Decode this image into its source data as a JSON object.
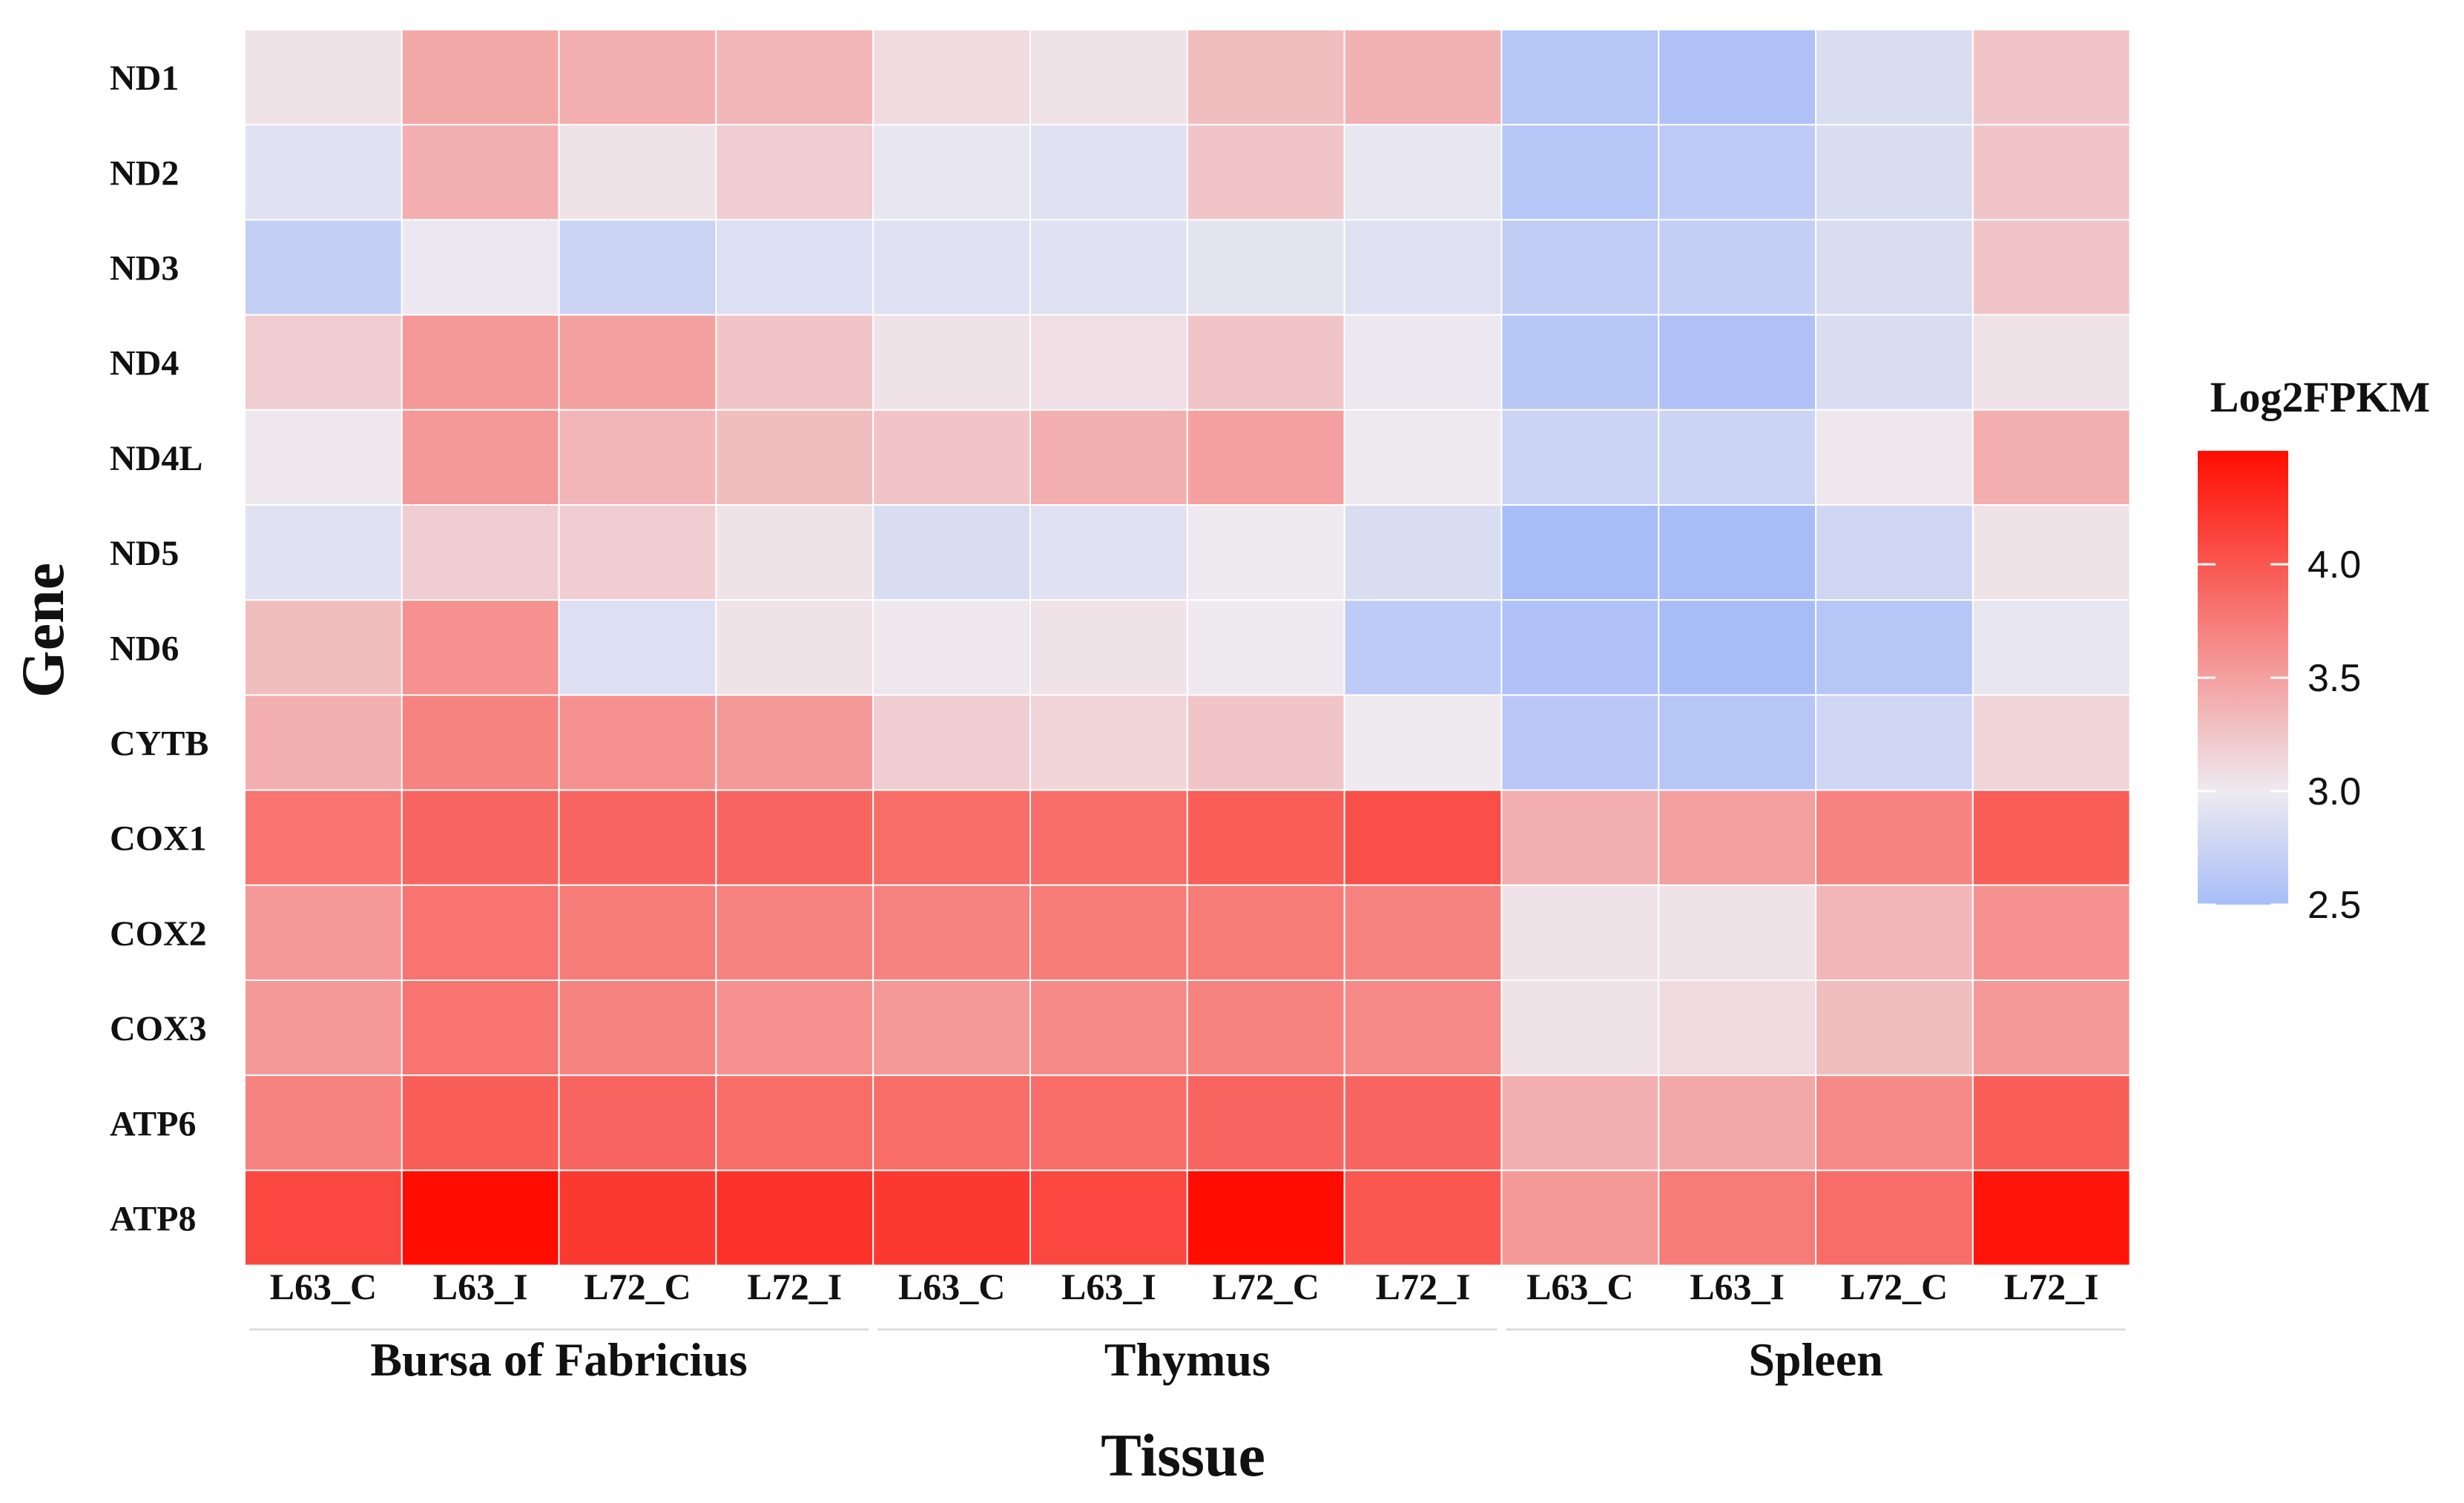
{
  "chart_data": {
    "type": "heatmap",
    "xlabel": "Tissue",
    "ylabel": "Gene",
    "legend_title": "Log2FPKM",
    "legend_ticks": [
      2.5,
      3.0,
      3.5,
      4.0
    ],
    "legend_tick_labels": [
      "2.5",
      "3.0",
      "3.5",
      "4.0"
    ],
    "value_range": [
      2.5,
      4.5
    ],
    "colors": {
      "low": "#a8bdf8",
      "mid": "#eeeaf0",
      "high": "#ff0d00"
    },
    "groups": [
      {
        "name": "Bursa of Fabricius",
        "columns": [
          "L63_C",
          "L63_I",
          "L72_C",
          "L72_I"
        ]
      },
      {
        "name": "Thymus",
        "columns": [
          "L63_C",
          "L63_I",
          "L72_C",
          "L72_I"
        ]
      },
      {
        "name": "Spleen",
        "columns": [
          "L63_C",
          "L63_I",
          "L72_C",
          "L72_I"
        ]
      }
    ],
    "rows": [
      "ND1",
      "ND2",
      "ND3",
      "ND4",
      "ND4L",
      "ND5",
      "ND6",
      "CYTB",
      "COX1",
      "COX2",
      "COX3",
      "ATP6",
      "ATP8"
    ],
    "values": [
      [
        3.05,
        3.45,
        3.4,
        3.35,
        3.1,
        3.05,
        3.3,
        3.38,
        2.6,
        2.55,
        2.85,
        3.25
      ],
      [
        2.9,
        3.4,
        3.05,
        3.2,
        2.95,
        2.9,
        3.25,
        2.95,
        2.6,
        2.65,
        2.85,
        3.25
      ],
      [
        2.7,
        2.98,
        2.75,
        2.88,
        2.9,
        2.9,
        2.93,
        2.9,
        2.68,
        2.7,
        2.85,
        3.25
      ],
      [
        3.2,
        3.55,
        3.5,
        3.25,
        3.05,
        3.08,
        3.25,
        2.98,
        2.6,
        2.55,
        2.85,
        3.05
      ],
      [
        3.02,
        3.55,
        3.35,
        3.3,
        3.25,
        3.4,
        3.5,
        3.0,
        2.75,
        2.75,
        3.02,
        3.4
      ],
      [
        2.9,
        3.2,
        3.2,
        3.05,
        2.85,
        2.9,
        3.0,
        2.85,
        2.5,
        2.5,
        2.78,
        3.05
      ],
      [
        3.3,
        3.6,
        2.88,
        3.05,
        3.02,
        3.05,
        3.0,
        2.65,
        2.55,
        2.5,
        2.6,
        2.95
      ],
      [
        3.4,
        3.7,
        3.6,
        3.55,
        3.2,
        3.15,
        3.25,
        3.0,
        2.62,
        2.6,
        2.78,
        3.15
      ],
      [
        3.8,
        3.9,
        3.9,
        3.9,
        3.85,
        3.85,
        3.95,
        4.05,
        3.4,
        3.5,
        3.7,
        3.95
      ],
      [
        3.55,
        3.8,
        3.75,
        3.7,
        3.7,
        3.75,
        3.75,
        3.7,
        3.05,
        3.05,
        3.35,
        3.6
      ],
      [
        3.55,
        3.8,
        3.7,
        3.6,
        3.55,
        3.65,
        3.7,
        3.65,
        3.05,
        3.1,
        3.3,
        3.55
      ],
      [
        3.7,
        3.95,
        3.9,
        3.85,
        3.85,
        3.85,
        3.9,
        3.9,
        3.4,
        3.45,
        3.65,
        3.95
      ],
      [
        4.1,
        4.55,
        4.2,
        4.25,
        4.2,
        4.1,
        4.5,
        4.0,
        3.55,
        3.75,
        3.85,
        4.45
      ]
    ]
  }
}
